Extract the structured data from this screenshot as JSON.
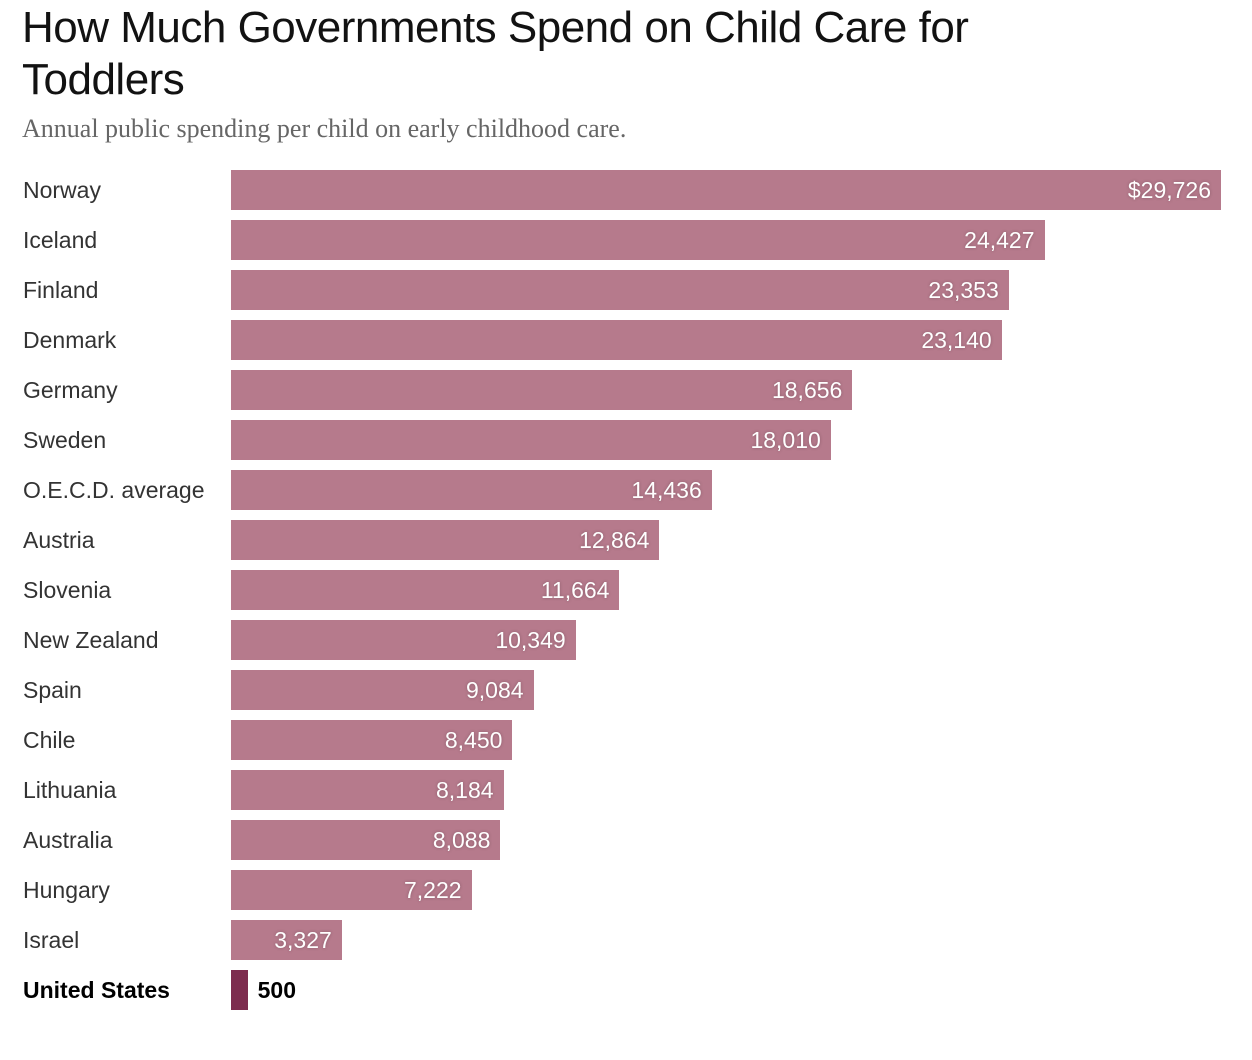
{
  "chart_data": {
    "type": "bar",
    "orientation": "horizontal",
    "title": "How Much Governments Spend on Child Care for Toddlers",
    "subtitle": "Annual public spending per child on early childhood care.",
    "categories": [
      "Norway",
      "Iceland",
      "Finland",
      "Denmark",
      "Germany",
      "Sweden",
      "O.E.C.D. average",
      "Austria",
      "Slovenia",
      "New Zealand",
      "Spain",
      "Chile",
      "Lithuania",
      "Australia",
      "Hungary",
      "Israel",
      "United States"
    ],
    "values": [
      29726,
      24427,
      23353,
      23140,
      18656,
      18010,
      14436,
      12864,
      11664,
      10349,
      9084,
      8450,
      8184,
      8088,
      7222,
      3327,
      500
    ],
    "value_labels": [
      "$29,726",
      "24,427",
      "23,353",
      "23,140",
      "18,656",
      "18,010",
      "14,436",
      "12,864",
      "11,664",
      "10,349",
      "9,084",
      "8,450",
      "8,184",
      "8,088",
      "7,222",
      "3,327",
      "500"
    ],
    "highlight": "United States",
    "xlim": [
      0,
      29726
    ],
    "grid": false,
    "colors": {
      "bar": "#b67a8c",
      "highlight": "#7d2c4e"
    }
  }
}
